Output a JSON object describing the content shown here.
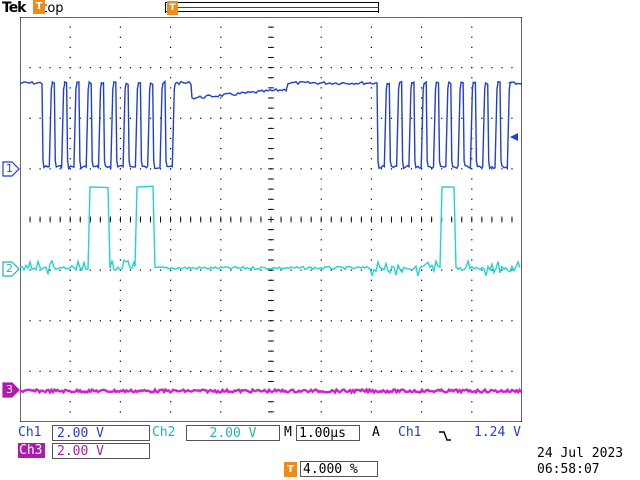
{
  "header": {
    "brand": "Tek",
    "status": "Stop",
    "trigger_marker": "T"
  },
  "channels": [
    {
      "id": "1",
      "label": "Ch1",
      "scale": "2.00 V",
      "color": "#1f3fd6"
    },
    {
      "id": "2",
      "label": "Ch2",
      "scale": "2.00 V",
      "color": "#21d4d4"
    },
    {
      "id": "3",
      "label": "Ch3",
      "scale": "2.00 V",
      "color": "#d21fd2"
    }
  ],
  "timebase": {
    "label": "M",
    "value": "1.00µs"
  },
  "trigger": {
    "mode": "A",
    "source": "Ch1",
    "slope_icon": "falling-edge-icon",
    "level": "1.24 V",
    "position_icon": "T",
    "position": "4.000 %"
  },
  "datetime": {
    "date": "24 Jul  2023",
    "time": "06:58:07"
  },
  "colors": {
    "graticule": "#000000",
    "background": "#ffffff"
  }
}
